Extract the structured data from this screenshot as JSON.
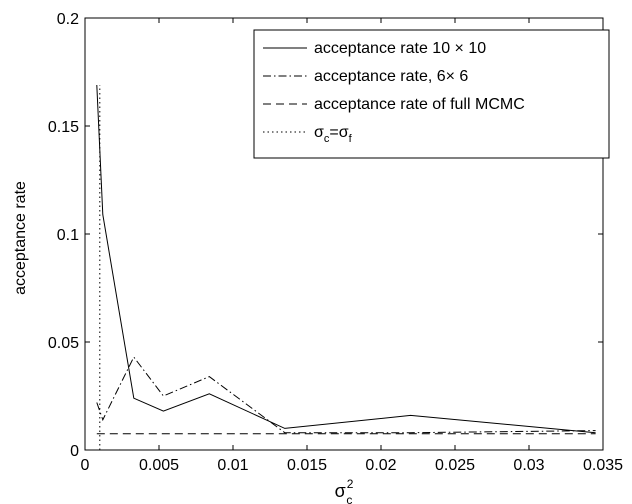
{
  "chart_data": {
    "type": "line",
    "xlabel": "σ",
    "xlabel_sup": "2",
    "xlabel_sub": "c",
    "ylabel": "acceptance rate",
    "xlim": [
      0,
      0.035
    ],
    "ylim": [
      0,
      0.2
    ],
    "x_ticks": [
      0,
      0.005,
      0.01,
      0.015,
      0.02,
      0.025,
      0.03,
      0.035
    ],
    "x_tick_labels": [
      "0",
      "0.005",
      "0.01",
      "0.015",
      "0.02",
      "0.025",
      "0.03",
      "0.035"
    ],
    "y_ticks": [
      0,
      0.05,
      0.1,
      0.15,
      0.2
    ],
    "y_tick_labels": [
      "0",
      "0.05",
      "0.1",
      "0.15",
      "0.2"
    ],
    "grid": false,
    "legend_position": "top-right",
    "series": [
      {
        "name": "acceptance rate 10 × 10",
        "dash": "solid",
        "x": [
          0.0008,
          0.0012,
          0.0033,
          0.0053,
          0.0084,
          0.0135,
          0.022,
          0.0345
        ],
        "y": [
          0.169,
          0.109,
          0.024,
          0.018,
          0.026,
          0.01,
          0.016,
          0.008
        ]
      },
      {
        "name": "acceptance rate, 6× 6",
        "dash": "dashdot",
        "x": [
          0.0008,
          0.0012,
          0.0033,
          0.0053,
          0.0084,
          0.0135,
          0.022,
          0.0345
        ],
        "y": [
          0.022,
          0.014,
          0.043,
          0.025,
          0.034,
          0.008,
          0.008,
          0.009
        ]
      },
      {
        "name": "acceptance rate of full MCMC",
        "dash": "dashed",
        "x": [
          0.0008,
          0.0345
        ],
        "y": [
          0.0075,
          0.0075
        ]
      },
      {
        "name": "σ",
        "name_parts": {
          "sym": "σ",
          "sub1": "c",
          "eq": "=",
          "sub2": "f"
        },
        "dash": "dotted",
        "x": [
          0.001,
          0.001
        ],
        "y": [
          0,
          0.169
        ]
      }
    ],
    "legend": {
      "entries": [
        "acceptance rate 10 × 10",
        "acceptance rate, 6× 6",
        "acceptance rate of full MCMC"
      ],
      "last_entry_parts": {
        "sym": "σ",
        "sub1": "c",
        "eq": "=",
        "sub2": "f"
      }
    }
  }
}
